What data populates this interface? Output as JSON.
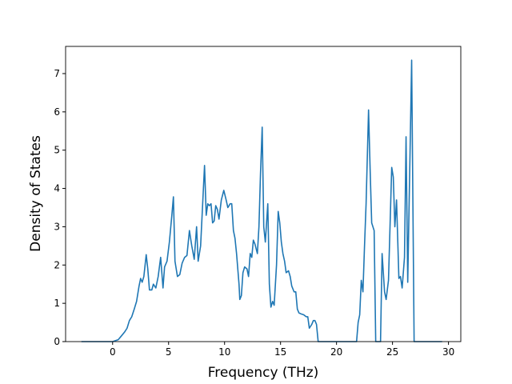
{
  "chart_data": {
    "type": "line",
    "xlabel": "Frequency (THz)",
    "ylabel": "Density of States",
    "xlim": [
      -4.2,
      31.1
    ],
    "ylim": [
      0,
      7.71
    ],
    "xticks": [
      0,
      5,
      10,
      15,
      20,
      25,
      30
    ],
    "yticks": [
      0,
      1,
      2,
      3,
      4,
      5,
      6,
      7
    ],
    "series": [
      {
        "color": "#1f77b4",
        "x": [
          -2.79,
          0,
          0.5,
          0.79,
          1.07,
          1.29,
          1.5,
          1.71,
          1.93,
          2.14,
          2.36,
          2.5,
          2.64,
          2.79,
          3.0,
          3.14,
          3.29,
          3.5,
          3.64,
          3.86,
          4.07,
          4.29,
          4.5,
          4.64,
          4.86,
          5.07,
          5.29,
          5.43,
          5.57,
          5.79,
          6.0,
          6.21,
          6.43,
          6.64,
          6.86,
          7.07,
          7.29,
          7.5,
          7.64,
          7.86,
          8.21,
          8.36,
          8.5,
          8.64,
          8.79,
          8.93,
          9.07,
          9.21,
          9.36,
          9.5,
          9.71,
          9.93,
          10.14,
          10.29,
          10.5,
          10.64,
          10.79,
          10.93,
          11.07,
          11.29,
          11.36,
          11.5,
          11.64,
          11.79,
          12.0,
          12.14,
          12.29,
          12.43,
          12.57,
          12.71,
          12.93,
          13.07,
          13.21,
          13.36,
          13.5,
          13.64,
          13.86,
          14.0,
          14.14,
          14.29,
          14.43,
          14.64,
          14.79,
          14.93,
          15.07,
          15.21,
          15.36,
          15.5,
          15.71,
          15.86,
          16.0,
          16.21,
          16.36,
          16.5,
          16.64,
          16.86,
          17.07,
          17.29,
          17.43,
          17.57,
          17.79,
          17.93,
          18.07,
          18.21,
          18.36,
          21.79,
          21.93,
          22.07,
          22.21,
          22.36,
          22.5,
          22.64,
          22.86,
          23.0,
          23.14,
          23.36,
          23.5,
          23.93,
          24.07,
          24.29,
          24.43,
          24.64,
          24.93,
          25.07,
          25.21,
          25.36,
          25.57,
          25.71,
          25.86,
          26.07,
          26.21,
          26.36,
          26.57,
          26.71,
          26.93,
          29.43
        ],
        "values": [
          0,
          0,
          0.05,
          0.15,
          0.25,
          0.35,
          0.55,
          0.65,
          0.85,
          1.05,
          1.45,
          1.65,
          1.55,
          1.7,
          2.27,
          1.9,
          1.35,
          1.35,
          1.5,
          1.4,
          1.7,
          2.2,
          1.4,
          1.95,
          2.1,
          2.6,
          3.3,
          3.78,
          2.1,
          1.7,
          1.75,
          2.05,
          2.2,
          2.25,
          2.9,
          2.5,
          2.15,
          3.0,
          2.1,
          2.5,
          4.6,
          3.3,
          3.6,
          3.55,
          3.6,
          3.1,
          3.15,
          3.55,
          3.45,
          3.2,
          3.7,
          3.95,
          3.7,
          3.5,
          3.6,
          3.6,
          2.9,
          2.7,
          2.3,
          1.5,
          1.1,
          1.2,
          1.8,
          1.95,
          1.9,
          1.7,
          2.3,
          2.2,
          2.65,
          2.55,
          2.3,
          3.0,
          4.4,
          5.6,
          3.0,
          2.6,
          3.6,
          1.5,
          0.9,
          1.05,
          0.95,
          2.0,
          3.4,
          3.1,
          2.6,
          2.3,
          2.1,
          1.8,
          1.85,
          1.7,
          1.45,
          1.3,
          1.3,
          0.85,
          0.75,
          0.72,
          0.7,
          0.65,
          0.65,
          0.35,
          0.45,
          0.55,
          0.55,
          0.45,
          0,
          0,
          0.5,
          0.7,
          1.6,
          1.3,
          2.5,
          3.6,
          6.05,
          4.5,
          3.1,
          2.9,
          0,
          0,
          2.3,
          1.3,
          1.1,
          1.6,
          4.55,
          4.3,
          3.0,
          3.7,
          1.65,
          1.7,
          1.4,
          2.2,
          5.35,
          1.55,
          5.0,
          7.35,
          0,
          0
        ]
      }
    ]
  }
}
